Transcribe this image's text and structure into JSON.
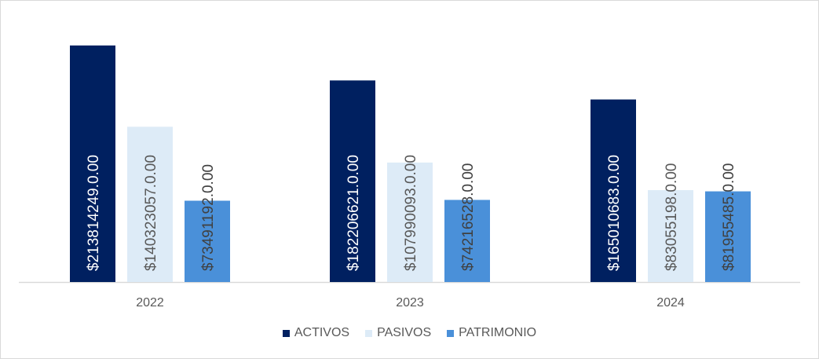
{
  "chart_data": {
    "type": "bar",
    "categories": [
      "2022",
      "2023",
      "2024"
    ],
    "series": [
      {
        "name": "ACTIVOS",
        "color": "#002060",
        "label_color": "#ffffff",
        "values": [
          213814249,
          182206621,
          165010683
        ],
        "labels": [
          "$213814249.0.00",
          "$182206621.0.00",
          "$165010683.0.00"
        ]
      },
      {
        "name": "PASIVOS",
        "color": "#DDEBF7",
        "label_color": "#595959",
        "values": [
          140323057,
          107990093,
          83055198
        ],
        "labels": [
          "$140323057.0.00",
          "$107990093.0.00",
          "$83055198.0.00"
        ]
      },
      {
        "name": "PATRIMONIO",
        "color": "#4A90D9",
        "label_color": "#404040",
        "values": [
          73491192,
          74216528,
          81955485
        ],
        "labels": [
          "$73491192.0.00",
          "$74216528.0.00",
          "$81955485.0.00"
        ]
      }
    ],
    "ylim": [
      0,
      240000000
    ],
    "grid": false,
    "legend_position": "bottom"
  }
}
